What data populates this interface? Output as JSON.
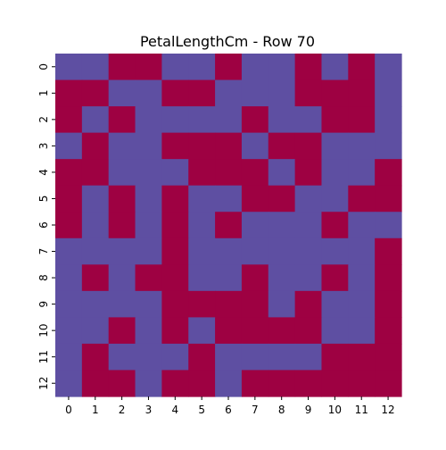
{
  "chart_data": {
    "type": "heatmap",
    "title": "PetalLengthCm - Row 70",
    "xlabel": "",
    "ylabel": "",
    "x_ticks": [
      "0",
      "1",
      "2",
      "3",
      "4",
      "5",
      "6",
      "7",
      "8",
      "9",
      "10",
      "11",
      "12"
    ],
    "y_ticks": [
      "0",
      "1",
      "2",
      "3",
      "4",
      "5",
      "6",
      "7",
      "8",
      "9",
      "10",
      "11",
      "12"
    ],
    "colorbar": false,
    "colors": {
      "0": "#5e4fa2",
      "1": "#9e0142"
    },
    "values": [
      [
        0,
        0,
        1,
        1,
        0,
        0,
        1,
        0,
        0,
        1,
        0,
        1,
        0
      ],
      [
        1,
        1,
        0,
        0,
        1,
        1,
        0,
        0,
        0,
        1,
        1,
        1,
        0
      ],
      [
        1,
        0,
        1,
        0,
        0,
        0,
        0,
        1,
        0,
        0,
        1,
        1,
        0
      ],
      [
        0,
        1,
        0,
        0,
        1,
        1,
        1,
        0,
        1,
        1,
        0,
        0,
        0
      ],
      [
        1,
        1,
        0,
        0,
        0,
        1,
        1,
        1,
        0,
        1,
        0,
        0,
        1
      ],
      [
        1,
        0,
        1,
        0,
        1,
        0,
        0,
        1,
        1,
        0,
        0,
        1,
        1
      ],
      [
        1,
        0,
        1,
        0,
        1,
        0,
        1,
        0,
        0,
        0,
        1,
        0,
        0
      ],
      [
        0,
        0,
        0,
        0,
        1,
        0,
        0,
        0,
        0,
        0,
        0,
        0,
        1
      ],
      [
        0,
        1,
        0,
        1,
        1,
        0,
        0,
        1,
        0,
        0,
        1,
        0,
        1
      ],
      [
        0,
        0,
        0,
        0,
        1,
        1,
        1,
        1,
        0,
        1,
        0,
        0,
        1
      ],
      [
        0,
        0,
        1,
        0,
        1,
        0,
        1,
        1,
        1,
        1,
        0,
        0,
        1
      ],
      [
        0,
        1,
        0,
        0,
        0,
        1,
        0,
        0,
        0,
        0,
        1,
        1,
        1
      ],
      [
        0,
        1,
        1,
        0,
        1,
        1,
        0,
        1,
        1,
        1,
        1,
        1,
        1
      ]
    ]
  }
}
